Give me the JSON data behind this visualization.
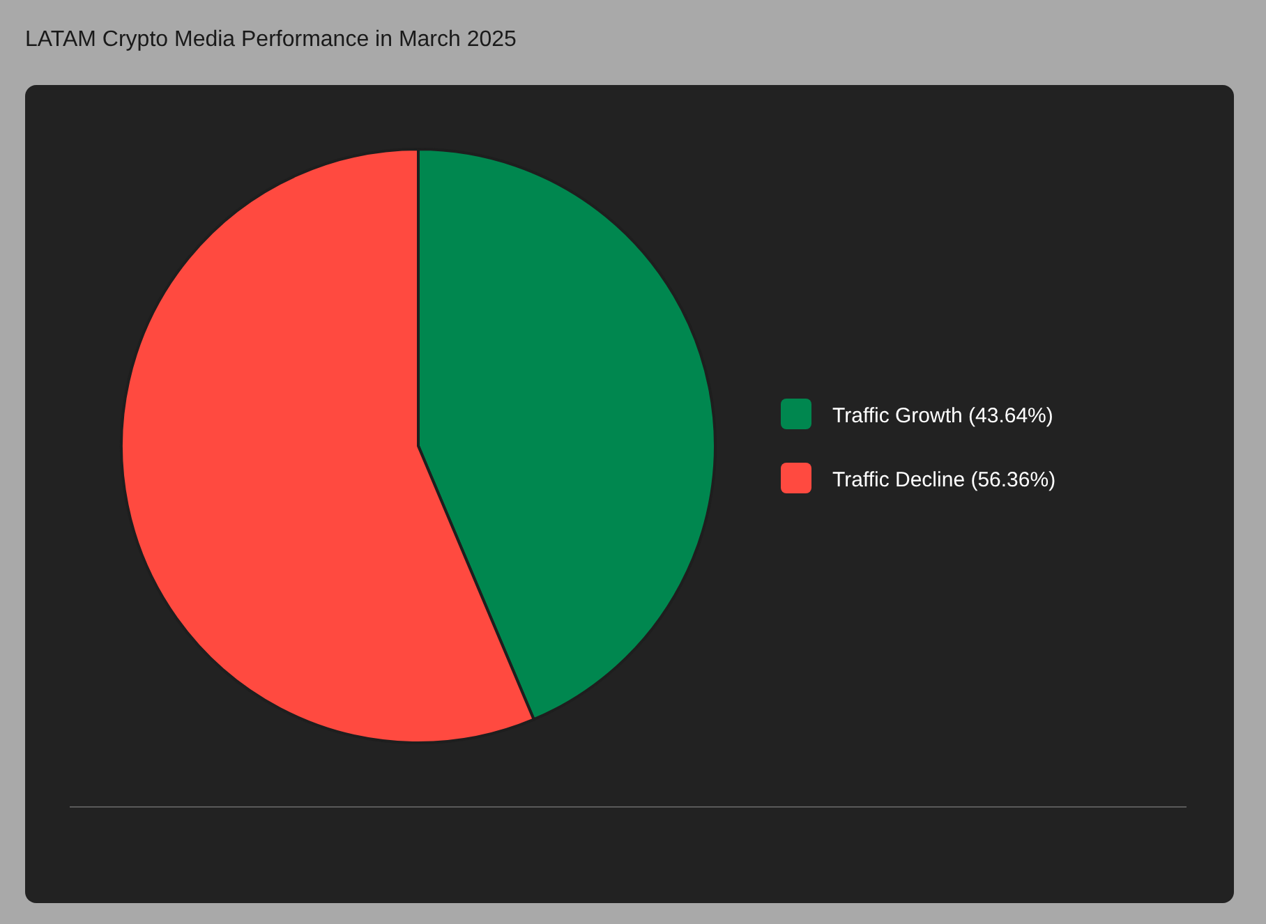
{
  "chart_data": {
    "type": "pie",
    "title": "LATAM Crypto Media Performance in March 2025",
    "categories": [
      "Traffic Growth (43.64%)",
      "Traffic Decline (56.36%)"
    ],
    "values": [
      43.64,
      56.36
    ],
    "colors": [
      "#00874f",
      "#ff4a40"
    ],
    "legend": "right"
  }
}
